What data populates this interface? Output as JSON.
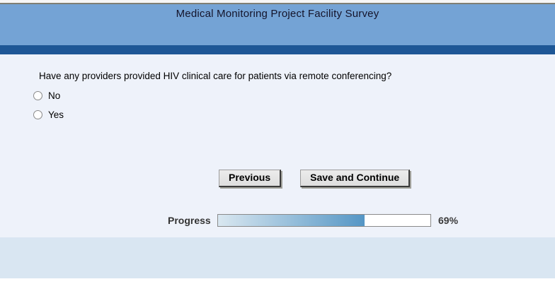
{
  "header": {
    "title": "Medical Monitoring Project Facility Survey"
  },
  "question": {
    "text": "Have any providers provided HIV clinical care for patients via remote conferencing?",
    "options": [
      {
        "label": "No",
        "selected": false
      },
      {
        "label": "Yes",
        "selected": false
      }
    ]
  },
  "buttons": {
    "previous": "Previous",
    "save": "Save and Continue"
  },
  "progress": {
    "label": "Progress",
    "percent": 69,
    "percent_text": "69%"
  },
  "colors": {
    "header_band": "#74a3d5",
    "dark_stripe": "#1e5796",
    "content_bg": "#eef2fa",
    "footer_band": "#d9e6f2",
    "progress_fill_start": "#d9e7f0",
    "progress_fill_end": "#5596c5"
  }
}
